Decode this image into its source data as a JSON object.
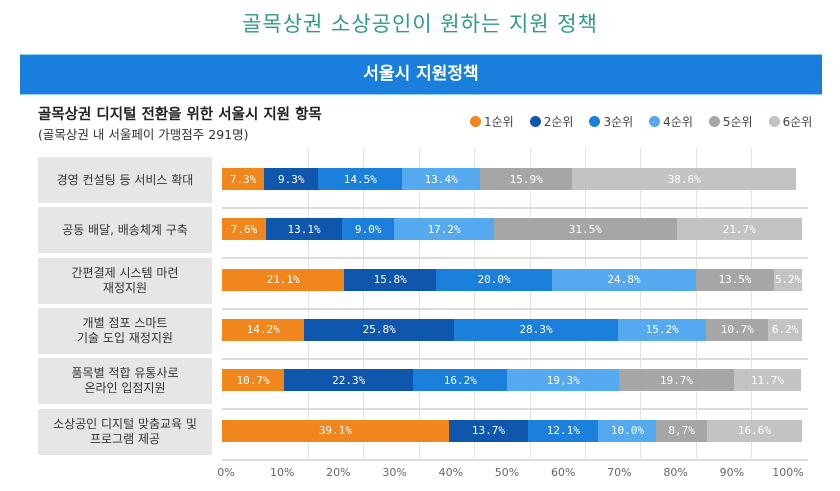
{
  "page_title": "골목상권 소상공인이 원하는 지원 정책",
  "banner": "서울시 지원정책",
  "chart_data": {
    "type": "bar",
    "orientation": "horizontal",
    "stacked": true,
    "title": "골목상권 디지털 전환을 위한 서울시 지원 항목",
    "subtitle": "(골목상권 내 서울페이 가맹점주 291명)",
    "xlabel": "",
    "ylabel": "",
    "xlim": [
      0,
      100
    ],
    "ticks": [
      "0%",
      "10%",
      "20%",
      "30%",
      "40%",
      "50%",
      "60%",
      "70%",
      "80%",
      "90%",
      "100%"
    ],
    "legend_position": "top-right",
    "categories": [
      "경영 컨설팅 등 서비스 확대",
      "공동 배달, 배송체계 구축",
      "간편결제 시스템 마련\n재정지원",
      "개별 점포 스마트\n기술 도입 재정지원",
      "품목별 적합 유통사로\n온라인 입점지원",
      "소상공인 디지털 맞춤교육 및\n프로그램 제공"
    ],
    "series": [
      {
        "name": "1순위",
        "color": "#f0861c",
        "values": [
          7.3,
          7.6,
          21.1,
          14.2,
          10.7,
          39.1
        ],
        "labels": [
          "7.3%",
          "7.6%",
          "21.1%",
          "14.2%",
          "10.7%",
          "39.1%"
        ]
      },
      {
        "name": "2순위",
        "color": "#0f56ad",
        "values": [
          9.3,
          13.1,
          15.8,
          25.8,
          22.3,
          13.7
        ],
        "labels": [
          "9.3%",
          "13.1%",
          "15.8%",
          "25.8%",
          "22.3%",
          "13.7%"
        ]
      },
      {
        "name": "3순위",
        "color": "#1a80dc",
        "values": [
          14.5,
          9.0,
          20.0,
          28.3,
          16.2,
          12.1
        ],
        "labels": [
          "14.5%",
          "9.0%",
          "20.0%",
          "28.3%",
          "16.2%",
          "12.1%"
        ]
      },
      {
        "name": "4순위",
        "color": "#55a9ef",
        "values": [
          13.4,
          17.2,
          24.8,
          15.2,
          19.3,
          10.0
        ],
        "labels": [
          "13.4%",
          "17.2%",
          "24.8%",
          "15.2%",
          "19,3%",
          "10.0%"
        ]
      },
      {
        "name": "5순위",
        "color": "#a6a6a6",
        "values": [
          15.9,
          31.5,
          13.5,
          10.7,
          19.7,
          8.7
        ],
        "labels": [
          "15.9%",
          "31.5%",
          "13.5%",
          "10.7%",
          "19.7%",
          "8,7%"
        ]
      },
      {
        "name": "6순위",
        "color": "#c3c3c3",
        "values": [
          38.6,
          21.7,
          5.2,
          6.2,
          11.7,
          16.6
        ],
        "labels": [
          "38.6%",
          "21.7%",
          "5.2%",
          "6.2%",
          "11.7%",
          "16.6%"
        ]
      }
    ]
  }
}
